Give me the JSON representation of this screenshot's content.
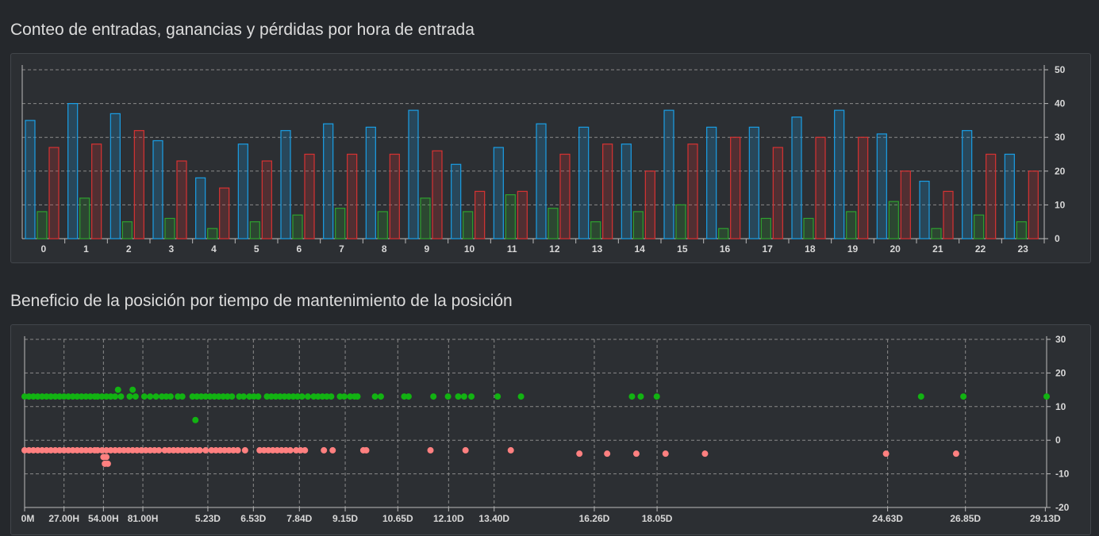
{
  "titles": {
    "chart1": "Conteo de entradas, ganancias y pérdidas por hora de entrada",
    "chart2": "Beneficio de la posición por tiempo de mantenimiento de la posición"
  },
  "colors": {
    "entries": "#1a9fe6",
    "wins": "#2fa12f",
    "losses": "#d83232",
    "profit_points": "#12b312",
    "loss_points": "#ff8080",
    "grid": "#8a8a8a"
  },
  "chart_data": [
    {
      "type": "bar",
      "title": "Conteo de entradas, ganancias y pérdidas por hora de entrada",
      "categories": [
        "0",
        "1",
        "2",
        "3",
        "4",
        "5",
        "6",
        "7",
        "8",
        "9",
        "10",
        "11",
        "12",
        "13",
        "14",
        "15",
        "16",
        "17",
        "18",
        "19",
        "20",
        "21",
        "22",
        "23"
      ],
      "series": [
        {
          "key": "entries",
          "values": [
            35,
            40,
            37,
            29,
            18,
            28,
            32,
            34,
            33,
            38,
            22,
            27,
            34,
            33,
            28,
            38,
            33,
            33,
            36,
            38,
            31,
            17,
            32,
            25
          ]
        },
        {
          "key": "wins",
          "values": [
            8,
            12,
            5,
            6,
            3,
            5,
            7,
            9,
            8,
            12,
            8,
            13,
            9,
            5,
            8,
            10,
            3,
            6,
            6,
            8,
            11,
            3,
            7,
            5
          ]
        },
        {
          "key": "losses",
          "values": [
            27,
            28,
            32,
            23,
            15,
            23,
            25,
            25,
            25,
            26,
            14,
            14,
            25,
            28,
            20,
            28,
            30,
            27,
            30,
            30,
            20,
            14,
            25,
            20
          ]
        }
      ],
      "ylim": [
        0,
        50
      ],
      "yticks": [
        0,
        10,
        20,
        30,
        40,
        50
      ],
      "ytick_labels": [
        "0",
        "10",
        "20",
        "30",
        "40",
        "50"
      ],
      "grid": true,
      "yaxis_side": "right"
    },
    {
      "type": "scatter",
      "title": "Beneficio de la posición por tiempo de mantenimiento de la posición",
      "x_unit": "hours",
      "xlim": [
        0,
        700
      ],
      "ylim": [
        -20,
        30
      ],
      "yticks": [
        -20,
        -10,
        0,
        10,
        20,
        30
      ],
      "ytick_labels": [
        "-20",
        "-10",
        "0",
        "10",
        "20",
        "30"
      ],
      "xticks": [
        0,
        27,
        54,
        81,
        125.5,
        156.7,
        188.2,
        219.6,
        255.6,
        290.4,
        321.6,
        390.2,
        433.2,
        591.1,
        644.4,
        699.1
      ],
      "xtick_labels": [
        "0M",
        "27.00H",
        "54.00H",
        "81.00H",
        "5.23D",
        "6.53D",
        "7.84D",
        "9.15D",
        "10.65D",
        "12.10D",
        "13.40D",
        "16.26D",
        "18.05D",
        "24.63D",
        "26.85D",
        "29.13D"
      ],
      "grid": true,
      "yaxis_side": "right",
      "series": [
        {
          "key": "profit_points",
          "points": [
            [
              0,
              13
            ],
            [
              3,
              13
            ],
            [
              6,
              13
            ],
            [
              9,
              13
            ],
            [
              12,
              13
            ],
            [
              15,
              13
            ],
            [
              18,
              13
            ],
            [
              21,
              13
            ],
            [
              24,
              13
            ],
            [
              27,
              13
            ],
            [
              30,
              13
            ],
            [
              33,
              13
            ],
            [
              36,
              13
            ],
            [
              39,
              13
            ],
            [
              42,
              13
            ],
            [
              45,
              13
            ],
            [
              48,
              13
            ],
            [
              50,
              13
            ],
            [
              53,
              13
            ],
            [
              56,
              13
            ],
            [
              59,
              13
            ],
            [
              62,
              13
            ],
            [
              66,
              13
            ],
            [
              72,
              13
            ],
            [
              76,
              13
            ],
            [
              82,
              13
            ],
            [
              86,
              13
            ],
            [
              90,
              13
            ],
            [
              94,
              13
            ],
            [
              97,
              13
            ],
            [
              100,
              13
            ],
            [
              105,
              13
            ],
            [
              108,
              13
            ],
            [
              115,
              13
            ],
            [
              118,
              13
            ],
            [
              121,
              13
            ],
            [
              124,
              13
            ],
            [
              127,
              13
            ],
            [
              130,
              13
            ],
            [
              133,
              13
            ],
            [
              136,
              13
            ],
            [
              139,
              13
            ],
            [
              142,
              13
            ],
            [
              147,
              13
            ],
            [
              150,
              13
            ],
            [
              154,
              13
            ],
            [
              157,
              13
            ],
            [
              160,
              13
            ],
            [
              166,
              13
            ],
            [
              169,
              13
            ],
            [
              172,
              13
            ],
            [
              175,
              13
            ],
            [
              178,
              13
            ],
            [
              181,
              13
            ],
            [
              184,
              13
            ],
            [
              187,
              13
            ],
            [
              190,
              13
            ],
            [
              194,
              13
            ],
            [
              198,
              13
            ],
            [
              201,
              13
            ],
            [
              204,
              13
            ],
            [
              207,
              13
            ],
            [
              210,
              13
            ],
            [
              216,
              13
            ],
            [
              219,
              13
            ],
            [
              223,
              13
            ],
            [
              226,
              13
            ],
            [
              228,
              13
            ],
            [
              240,
              13
            ],
            [
              244,
              13
            ],
            [
              260,
              13
            ],
            [
              263,
              13
            ],
            [
              280,
              13
            ],
            [
              290,
              13
            ],
            [
              297,
              13
            ],
            [
              301,
              13
            ],
            [
              306,
              13
            ],
            [
              324,
              13
            ],
            [
              340,
              13
            ],
            [
              416,
              13
            ],
            [
              422,
              13
            ],
            [
              433,
              13
            ],
            [
              614,
              13
            ],
            [
              643,
              13
            ],
            [
              700,
              13
            ],
            [
              64,
              15
            ],
            [
              74,
              15
            ],
            [
              117,
              6
            ]
          ]
        },
        {
          "key": "loss_points",
          "points": [
            [
              0,
              -3
            ],
            [
              3,
              -3
            ],
            [
              6,
              -3
            ],
            [
              9,
              -3
            ],
            [
              12,
              -3
            ],
            [
              15,
              -3
            ],
            [
              18,
              -3
            ],
            [
              21,
              -3
            ],
            [
              24,
              -3
            ],
            [
              27,
              -3
            ],
            [
              30,
              -3
            ],
            [
              33,
              -3
            ],
            [
              36,
              -3
            ],
            [
              39,
              -3
            ],
            [
              42,
              -3
            ],
            [
              45,
              -3
            ],
            [
              48,
              -3
            ],
            [
              50,
              -3
            ],
            [
              53,
              -3
            ],
            [
              56,
              -3
            ],
            [
              59,
              -3
            ],
            [
              62,
              -3
            ],
            [
              65,
              -3
            ],
            [
              68,
              -3
            ],
            [
              71,
              -3
            ],
            [
              74,
              -3
            ],
            [
              77,
              -3
            ],
            [
              80,
              -3
            ],
            [
              83,
              -3
            ],
            [
              86,
              -3
            ],
            [
              89,
              -3
            ],
            [
              92,
              -3
            ],
            [
              96,
              -3
            ],
            [
              99,
              -3
            ],
            [
              102,
              -3
            ],
            [
              105,
              -3
            ],
            [
              108,
              -3
            ],
            [
              111,
              -3
            ],
            [
              114,
              -3
            ],
            [
              117,
              -3
            ],
            [
              120,
              -3
            ],
            [
              124,
              -3
            ],
            [
              128,
              -3
            ],
            [
              131,
              -3
            ],
            [
              134,
              -3
            ],
            [
              137,
              -3
            ],
            [
              140,
              -3
            ],
            [
              143,
              -3
            ],
            [
              146,
              -3
            ],
            [
              151,
              -3
            ],
            [
              161,
              -3
            ],
            [
              164,
              -3
            ],
            [
              167,
              -3
            ],
            [
              170,
              -3
            ],
            [
              173,
              -3
            ],
            [
              176,
              -3
            ],
            [
              179,
              -3
            ],
            [
              182,
              -3
            ],
            [
              186,
              -3
            ],
            [
              189,
              -3
            ],
            [
              192,
              -3
            ],
            [
              205,
              -3
            ],
            [
              211,
              -3
            ],
            [
              232,
              -3
            ],
            [
              234,
              -3
            ],
            [
              278,
              -3
            ],
            [
              302,
              -3
            ],
            [
              333,
              -3
            ],
            [
              54,
              -5
            ],
            [
              56,
              -5
            ],
            [
              55,
              -7
            ],
            [
              57,
              -7
            ],
            [
              399,
              -4
            ],
            [
              439,
              -4
            ],
            [
              380,
              -4
            ],
            [
              419,
              -4
            ],
            [
              466,
              -4
            ],
            [
              590,
              -4
            ],
            [
              638,
              -4
            ]
          ]
        }
      ]
    }
  ]
}
